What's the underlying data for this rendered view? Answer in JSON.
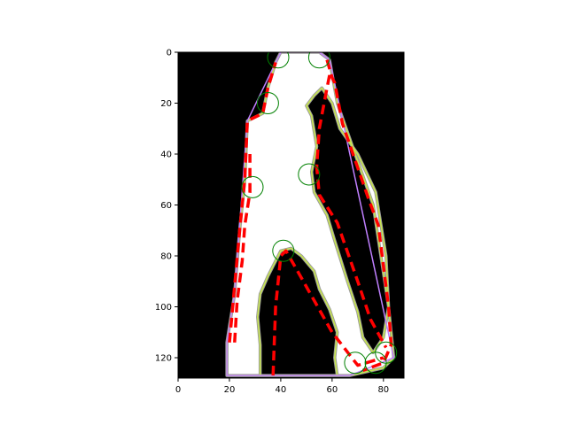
{
  "chart_data": {
    "type": "image-overlay",
    "title": "",
    "xlabel": "",
    "ylabel": "",
    "xlim": [
      0,
      88
    ],
    "ylim": [
      128,
      0
    ],
    "x_ticks": [
      0,
      20,
      40,
      60,
      80
    ],
    "y_ticks": [
      0,
      20,
      40,
      60,
      80,
      100,
      120
    ],
    "background_color": "#000000",
    "shape_fill_color": "#ffffff",
    "shape_edge_color": "#c8e650",
    "contour_color": "#ff0000",
    "hull_color": "#c080ff",
    "marker_color": "#008000",
    "shape_outer": [
      [
        19,
        127
      ],
      [
        19,
        114
      ],
      [
        22,
        95
      ],
      [
        24,
        70
      ],
      [
        26,
        50
      ],
      [
        27,
        27
      ],
      [
        33,
        24
      ],
      [
        35,
        14
      ],
      [
        38,
        4
      ],
      [
        40,
        0
      ],
      [
        55,
        0
      ],
      [
        59,
        3
      ],
      [
        62,
        20
      ],
      [
        69,
        40
      ],
      [
        76,
        60
      ],
      [
        82,
        100
      ],
      [
        84,
        120
      ],
      [
        80,
        124
      ],
      [
        67,
        127
      ]
    ],
    "shape_hole_upper": [
      [
        52,
        25
      ],
      [
        50,
        21
      ],
      [
        53,
        17
      ],
      [
        56,
        14
      ],
      [
        60,
        20
      ],
      [
        63,
        30
      ],
      [
        70,
        40
      ],
      [
        77,
        55
      ],
      [
        81,
        80
      ],
      [
        82,
        100
      ],
      [
        80,
        112
      ],
      [
        76,
        118
      ],
      [
        72,
        112
      ],
      [
        70,
        102
      ],
      [
        66,
        90
      ],
      [
        61,
        74
      ],
      [
        58,
        64
      ],
      [
        53,
        55
      ],
      [
        52,
        47
      ],
      [
        54,
        37
      ]
    ],
    "shape_hole_lower": [
      [
        32,
        127
      ],
      [
        32,
        115
      ],
      [
        31,
        104
      ],
      [
        32,
        95
      ],
      [
        35,
        88
      ],
      [
        40,
        78
      ],
      [
        44,
        77
      ],
      [
        48,
        80
      ],
      [
        53,
        86
      ],
      [
        55,
        93
      ],
      [
        59,
        101
      ],
      [
        62,
        110
      ],
      [
        61,
        120
      ],
      [
        62,
        127
      ]
    ],
    "contour_paths": [
      [
        [
          20,
          114
        ],
        [
          24,
          70
        ],
        [
          26,
          50
        ],
        [
          27,
          27
        ],
        [
          33,
          24
        ],
        [
          35,
          14
        ],
        [
          38,
          4
        ]
      ],
      [
        [
          58,
          3
        ],
        [
          60,
          10
        ],
        [
          61,
          12
        ],
        [
          64,
          28
        ],
        [
          74,
          57
        ],
        [
          78,
          68
        ],
        [
          82,
          100
        ],
        [
          83,
          115
        ],
        [
          80,
          122
        ],
        [
          72,
          125
        ]
      ],
      [
        [
          59,
          9
        ],
        [
          58,
          14
        ],
        [
          55,
          30
        ],
        [
          54,
          45
        ],
        [
          55,
          56
        ],
        [
          62,
          67
        ],
        [
          70,
          90
        ],
        [
          75,
          105
        ],
        [
          81,
          116
        ]
      ],
      [
        [
          37,
          127
        ],
        [
          38,
          100
        ],
        [
          40,
          80
        ],
        [
          42,
          78
        ],
        [
          46,
          85
        ],
        [
          60,
          110
        ],
        [
          70,
          123
        ],
        [
          80,
          120
        ]
      ],
      [
        [
          22,
          114
        ],
        [
          23,
          98
        ],
        [
          25,
          82
        ],
        [
          26,
          68
        ],
        [
          28,
          55
        ],
        [
          28,
          40
        ]
      ]
    ],
    "hull": [
      [
        19,
        127
      ],
      [
        19,
        114
      ],
      [
        22,
        95
      ],
      [
        27,
        27
      ],
      [
        40,
        0
      ],
      [
        55,
        0
      ],
      [
        59,
        3
      ],
      [
        84,
        120
      ],
      [
        67,
        127
      ]
    ],
    "markers": [
      [
        39,
        2
      ],
      [
        55,
        2
      ],
      [
        35,
        20
      ],
      [
        29,
        53
      ],
      [
        51,
        48
      ],
      [
        41,
        78
      ],
      [
        69,
        122
      ],
      [
        77,
        122
      ],
      [
        81,
        118
      ]
    ]
  }
}
